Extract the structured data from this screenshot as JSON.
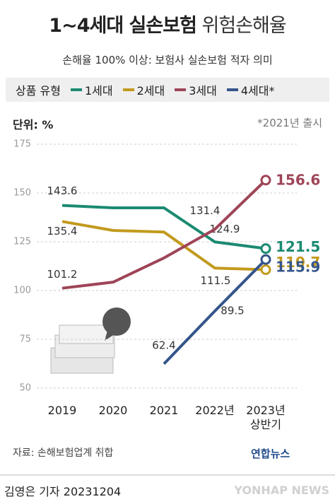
{
  "title": "1~4세대 실손보험",
  "title_suffix": "위험손해율",
  "subtitle": "손해율 100% 이상: 보험사 실손보험 적자 의미",
  "source": "자료: 손해보험업계 취합",
  "logo": "연합뉴스",
  "credit": "김영은 기자  20231204",
  "watermark": "YONHAP NEWS",
  "chart_data": {
    "type": "line",
    "legend_title": "상품 유형",
    "unit": "단위: %",
    "note": "*2021년 출시",
    "categories": [
      "2019",
      "2020",
      "2021",
      "2022년",
      "2023년 상반기"
    ],
    "ylim": [
      50,
      175
    ],
    "yticks": [
      50,
      75,
      100,
      125,
      150,
      175
    ],
    "grid": true,
    "series": [
      {
        "name": "1세대",
        "color": "#1b8a72",
        "values": [
          143.6,
          142.4,
          142.4,
          124.9,
          121.5
        ]
      },
      {
        "name": "2세대",
        "color": "#c29a1e",
        "values": [
          135.4,
          130.8,
          130.0,
          111.5,
          110.7
        ]
      },
      {
        "name": "3세대",
        "color": "#9e4558",
        "values": [
          101.2,
          104.3,
          116.7,
          131.4,
          156.6
        ]
      },
      {
        "name": "4세대*",
        "color": "#34558a",
        "values": [
          null,
          null,
          62.4,
          89.5,
          115.9
        ]
      }
    ]
  }
}
